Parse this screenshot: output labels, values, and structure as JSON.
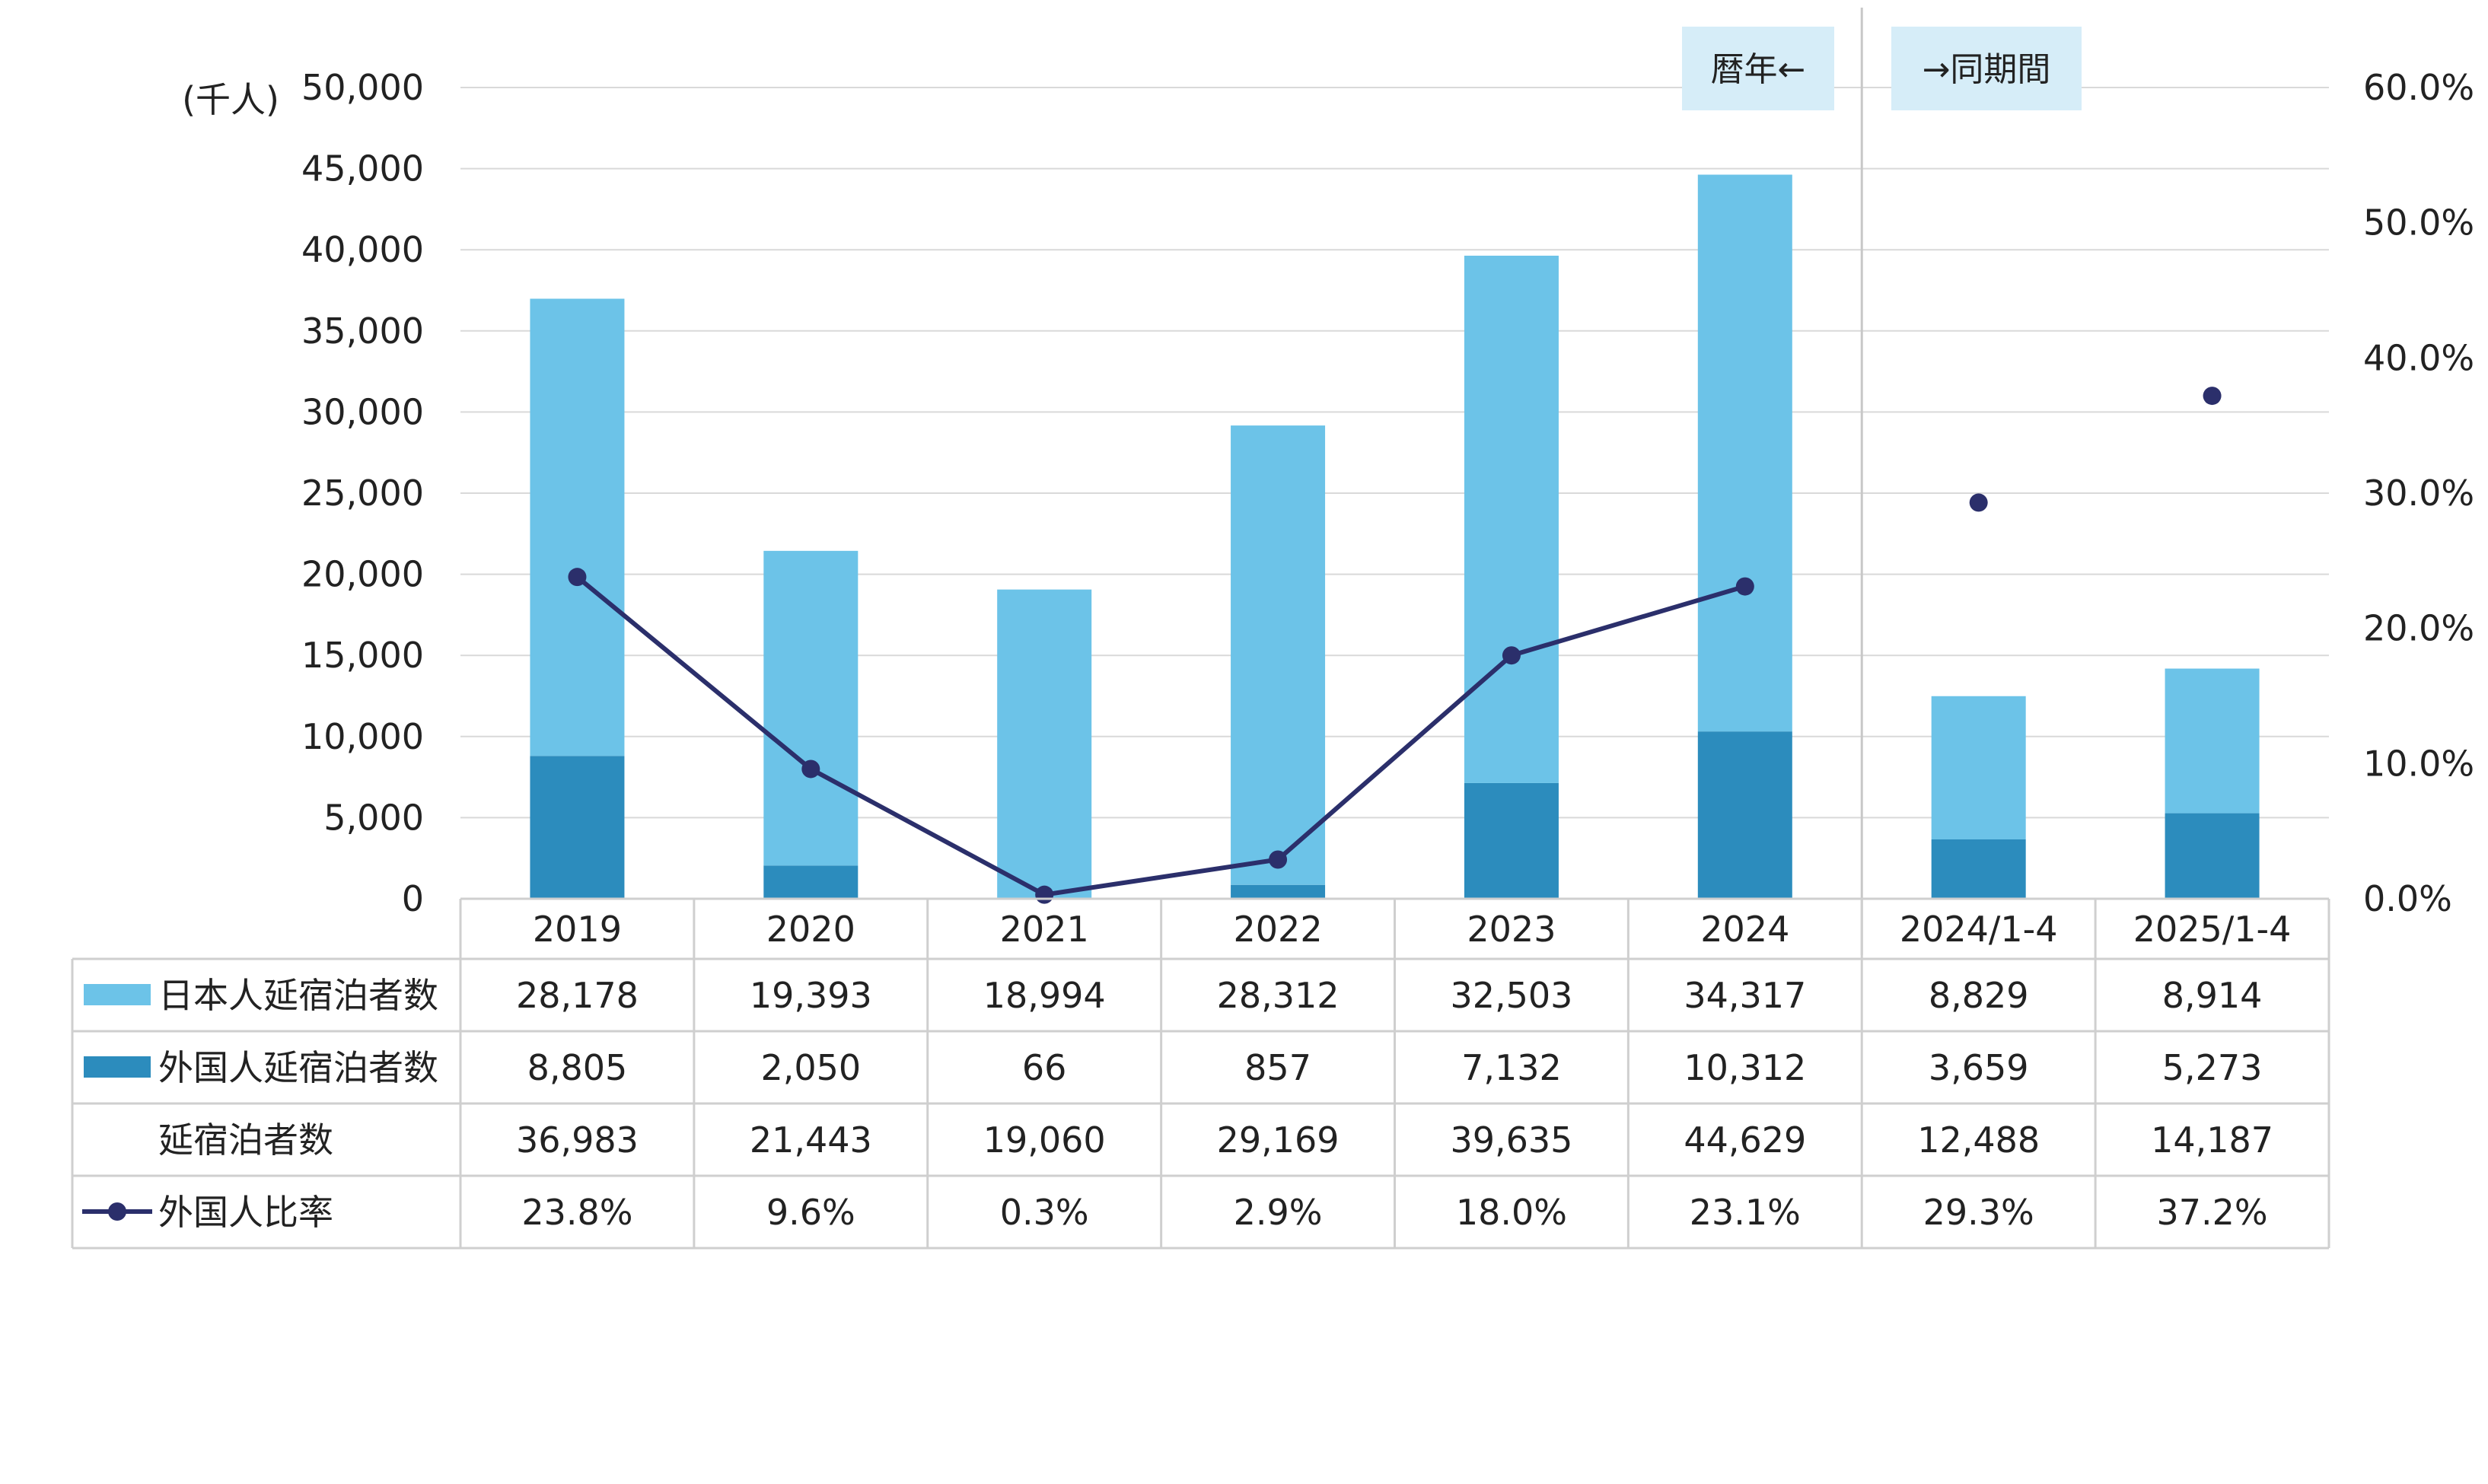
{
  "chart_data": {
    "type": "bar",
    "stacked": true,
    "unit_label": "(千人)",
    "categories": [
      "2019",
      "2020",
      "2021",
      "2022",
      "2023",
      "2024",
      "2024/1-4",
      "2025/1-4"
    ],
    "series": [
      {
        "name": "日本人延宿泊者数",
        "type": "bar",
        "axis": "left",
        "color": "#6cc3e8",
        "values": [
          28178,
          19393,
          18994,
          28312,
          32503,
          34317,
          8829,
          8914
        ],
        "labels": [
          "28,178",
          "19,393",
          "18,994",
          "28,312",
          "32,503",
          "34,317",
          "8,829",
          "8,914"
        ]
      },
      {
        "name": "外国人延宿泊者数",
        "type": "bar",
        "axis": "left",
        "color": "#2c8cbd",
        "values": [
          8805,
          2050,
          66,
          857,
          7132,
          10312,
          3659,
          5273
        ],
        "labels": [
          "8,805",
          "2,050",
          "66",
          "857",
          "7,132",
          "10,312",
          "3,659",
          "5,273"
        ]
      },
      {
        "name": "延宿泊者数",
        "type": "total",
        "values": [
          36983,
          21443,
          19060,
          29169,
          39635,
          44629,
          12488,
          14187
        ],
        "labels": [
          "36,983",
          "21,443",
          "19,060",
          "29,169",
          "39,635",
          "44,629",
          "12,488",
          "14,187"
        ]
      },
      {
        "name": "外国人比率",
        "type": "line",
        "axis": "right",
        "color": "#2b2f6b",
        "values": [
          23.8,
          9.6,
          0.3,
          2.9,
          18.0,
          23.1,
          29.3,
          37.2
        ],
        "labels": [
          "23.8%",
          "9.6%",
          "0.3%",
          "2.9%",
          "18.0%",
          "23.1%",
          "29.3%",
          "37.2%"
        ],
        "line_segment_count": 6
      }
    ],
    "y_left": {
      "min": 0,
      "max": 50000,
      "step": 5000,
      "tick_labels": [
        "0",
        "5,000",
        "10,000",
        "15,000",
        "20,000",
        "25,000",
        "30,000",
        "35,000",
        "40,000",
        "45,000",
        "50,000"
      ]
    },
    "y_right": {
      "min": 0,
      "max": 60,
      "step": 10,
      "tick_labels": [
        "0.0%",
        "10.0%",
        "20.0%",
        "30.0%",
        "40.0%",
        "50.0%",
        "60.0%"
      ]
    },
    "grid": true,
    "legend": "data-table",
    "annotations": {
      "left": "暦年←",
      "right": "→同期間",
      "color": "#d6edf8"
    }
  }
}
